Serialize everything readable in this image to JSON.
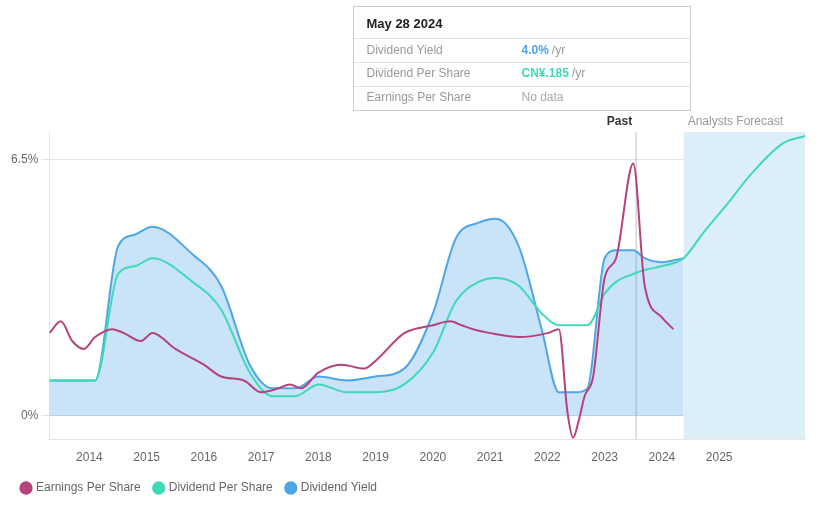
{
  "chart_data": {
    "type": "line",
    "xlim": [
      2013.3,
      2026.5
    ],
    "ylim": [
      -0.6,
      7.2
    ],
    "xticks": [
      2014,
      2015,
      2016,
      2017,
      2018,
      2019,
      2020,
      2021,
      2022,
      2023,
      2024,
      2025
    ],
    "yticks": [
      {
        "value": 0,
        "label": "0%"
      },
      {
        "value": 6.5,
        "label": "6.5%"
      }
    ],
    "grid": "y",
    "legend": "lower left",
    "series": [
      {
        "name": "Dividend Yield",
        "type": "area",
        "color": "#4da6e8",
        "x": [
          2013.3,
          2014.1,
          2014.5,
          2014.8,
          2015.1,
          2015.8,
          2016.3,
          2016.8,
          2017.2,
          2017.6,
          2018.0,
          2018.5,
          2019.0,
          2019.5,
          2020.0,
          2020.4,
          2020.8,
          2021.1,
          2021.5,
          2021.9,
          2022.2,
          2022.5,
          2022.7,
          2023.0,
          2023.2,
          2023.5,
          2023.7,
          2024.0,
          2024.38
        ],
        "values": [
          0.9,
          0.9,
          4.3,
          4.6,
          4.8,
          4.1,
          3.3,
          1.3,
          0.7,
          0.7,
          1.0,
          0.9,
          1.0,
          1.2,
          2.6,
          4.5,
          4.9,
          5.0,
          4.3,
          2.2,
          0.6,
          0.6,
          0.7,
          4.0,
          4.2,
          4.2,
          4.0,
          3.9,
          4.0
        ]
      },
      {
        "name": "Dividend Per Share",
        "type": "line",
        "color": "#40d9b8",
        "x": [
          2013.3,
          2014.1,
          2014.5,
          2014.8,
          2015.1,
          2015.8,
          2016.3,
          2016.8,
          2017.2,
          2017.6,
          2018.0,
          2018.5,
          2019.0,
          2019.5,
          2020.0,
          2020.4,
          2020.8,
          2021.1,
          2021.5,
          2021.9,
          2022.2,
          2022.5,
          2022.7,
          2023.0,
          2023.2,
          2023.5,
          2023.7,
          2024.0,
          2024.38,
          2024.7,
          2025.1,
          2025.6,
          2026.1,
          2026.5
        ],
        "values": [
          0.9,
          0.9,
          3.6,
          3.8,
          4.0,
          3.4,
          2.7,
          1.1,
          0.5,
          0.5,
          0.8,
          0.6,
          0.6,
          0.8,
          1.6,
          2.9,
          3.4,
          3.5,
          3.3,
          2.6,
          2.3,
          2.3,
          2.3,
          3.1,
          3.4,
          3.6,
          3.7,
          3.8,
          4.0,
          4.6,
          5.3,
          6.2,
          6.9,
          7.1
        ]
      },
      {
        "name": "Earnings Per Share",
        "type": "line",
        "color": "#b5427a",
        "x": [
          2013.3,
          2013.5,
          2013.7,
          2013.9,
          2014.1,
          2014.4,
          2014.6,
          2014.9,
          2015.1,
          2015.5,
          2016.0,
          2016.3,
          2016.7,
          2017.0,
          2017.3,
          2017.5,
          2017.7,
          2018.0,
          2018.4,
          2018.8,
          2019.0,
          2019.5,
          2020.0,
          2020.3,
          2020.5,
          2020.7,
          2021.0,
          2021.5,
          2022.0,
          2022.2,
          2022.35,
          2022.45,
          2022.55,
          2022.65,
          2022.8,
          2023.0,
          2023.2,
          2023.5,
          2023.7,
          2024.0,
          2024.2
        ],
        "values": [
          2.1,
          2.4,
          1.9,
          1.7,
          2.0,
          2.2,
          2.1,
          1.9,
          2.1,
          1.7,
          1.3,
          1.0,
          0.9,
          0.6,
          0.7,
          0.8,
          0.7,
          1.1,
          1.3,
          1.2,
          1.4,
          2.1,
          2.3,
          2.4,
          2.3,
          2.2,
          2.1,
          2.0,
          2.1,
          2.2,
          0.1,
          -0.55,
          -0.1,
          0.5,
          1.0,
          3.5,
          4.0,
          6.4,
          3.3,
          2.5,
          2.2
        ]
      }
    ],
    "annotations": [
      {
        "text": "Past",
        "x": 2023.55,
        "color": "#c0c0c0"
      },
      {
        "text": "Analysts Forecast",
        "xlim": [
          2024.38,
          2026.5
        ],
        "color": "#dceef8"
      },
      {
        "title": "May 28 2024",
        "rows": [
          {
            "label": "Dividend Yield",
            "value": "4.0%",
            "unit": "/yr",
            "color": "#4da6e8"
          },
          {
            "label": "Dividend Per Share",
            "value": "CN¥.185",
            "unit": "/yr",
            "color": "#40d9b8"
          },
          {
            "label": "Earnings Per Share",
            "value": "No data",
            "color": "#aaaaaa"
          }
        ]
      }
    ]
  }
}
